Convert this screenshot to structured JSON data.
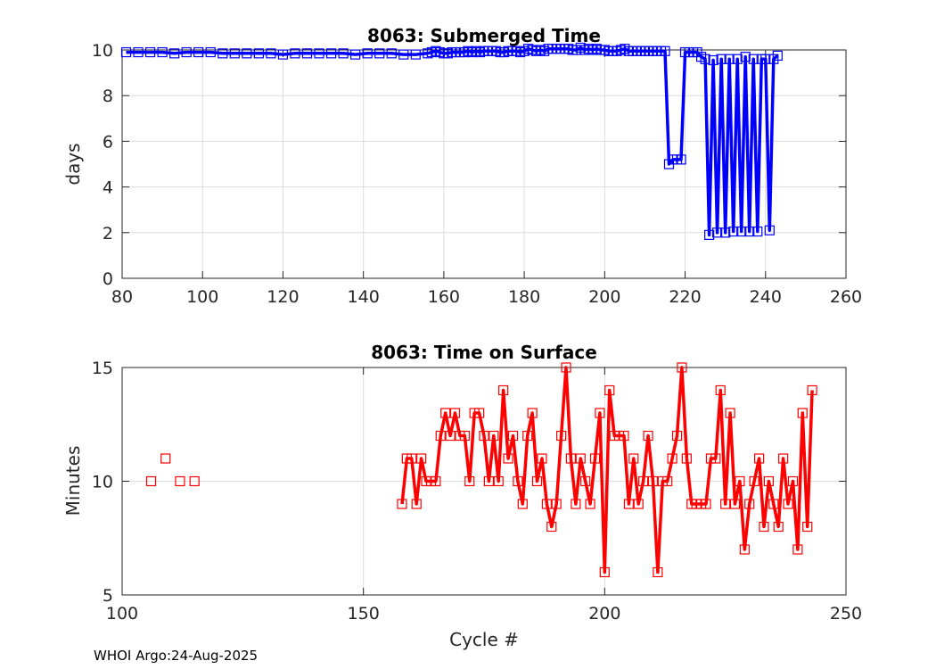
{
  "figure": {
    "footer": "WHOI Argo:24-Aug-2025"
  },
  "chart_data": [
    {
      "type": "line",
      "title": "8063: Submerged Time",
      "xlabel": "",
      "ylabel": "days",
      "xlim": [
        80,
        260
      ],
      "ylim": [
        0,
        10
      ],
      "xticks": [
        80,
        100,
        120,
        140,
        160,
        180,
        200,
        220,
        240,
        260
      ],
      "yticks": [
        0,
        2,
        4,
        6,
        8,
        10
      ],
      "grid": true,
      "color": "#0000ff",
      "marker": "square",
      "series": [
        {
          "x": [
            81,
            84,
            87,
            90,
            93,
            96,
            99,
            102,
            105,
            108,
            111,
            114,
            117,
            120,
            123,
            126,
            129,
            132,
            135,
            138,
            141,
            144,
            147,
            150,
            153,
            156,
            157,
            158,
            159,
            160,
            161,
            162,
            163,
            164,
            165,
            166,
            167,
            168,
            169,
            170,
            171,
            172,
            173,
            174,
            175,
            176,
            177,
            178,
            179,
            180,
            181,
            182,
            183,
            184,
            185,
            186,
            187,
            188,
            189,
            190,
            191,
            192,
            193,
            194,
            195,
            196,
            197,
            198,
            199,
            200,
            201,
            202,
            203,
            204,
            205,
            206,
            207,
            208,
            209,
            210,
            211,
            212,
            213,
            214,
            215,
            216,
            217,
            218,
            219,
            220,
            221,
            222,
            223,
            224,
            225,
            226,
            227,
            228,
            229,
            230,
            231,
            232,
            233,
            234,
            235,
            236,
            237,
            238,
            239,
            240,
            241,
            242,
            243
          ],
          "y": [
            9.9,
            9.9,
            9.9,
            9.9,
            9.85,
            9.9,
            9.9,
            9.9,
            9.85,
            9.85,
            9.85,
            9.85,
            9.85,
            9.8,
            9.85,
            9.85,
            9.85,
            9.85,
            9.85,
            9.8,
            9.85,
            9.85,
            9.85,
            9.8,
            9.8,
            9.85,
            9.9,
            9.95,
            9.9,
            9.85,
            9.85,
            9.9,
            9.9,
            9.9,
            9.9,
            9.95,
            9.9,
            9.95,
            9.9,
            9.95,
            9.95,
            9.95,
            9.95,
            9.9,
            9.9,
            9.95,
            9.95,
            9.95,
            9.9,
            9.95,
            10.05,
            10.0,
            9.95,
            10.0,
            9.95,
            10.05,
            10.05,
            10.05,
            10.05,
            10.05,
            10.05,
            10.0,
            10.0,
            10.1,
            10.0,
            10.05,
            10.0,
            10.05,
            10.0,
            10.0,
            9.95,
            9.95,
            9.95,
            10.0,
            10.05,
            9.95,
            9.95,
            9.95,
            9.95,
            9.95,
            9.95,
            9.95,
            9.95,
            9.95,
            9.95,
            5.0,
            5.2,
            5.2,
            5.2,
            9.9,
            9.9,
            9.9,
            9.9,
            9.7,
            9.6,
            1.9,
            9.55,
            2.0,
            9.6,
            2.0,
            9.6,
            2.05,
            9.6,
            2.05,
            9.7,
            2.05,
            9.6,
            2.05,
            9.6,
            9.6,
            2.1,
            9.6,
            9.75
          ]
        }
      ]
    },
    {
      "type": "line",
      "title": "8063: Time on Surface",
      "xlabel": "Cycle #",
      "ylabel": "Minutes",
      "xlim": [
        100,
        250
      ],
      "ylim": [
        5,
        15
      ],
      "xticks": [
        100,
        150,
        200,
        250
      ],
      "yticks": [
        5,
        10,
        15
      ],
      "grid": true,
      "color": "#ff0000",
      "marker": "square",
      "series": [
        {
          "x": [
            106,
            109,
            112,
            115
          ],
          "y": [
            10,
            11,
            10,
            10
          ],
          "line": false
        },
        {
          "x": [
            158,
            159,
            160,
            161,
            162,
            163,
            164,
            165,
            166,
            167,
            168,
            169,
            170,
            171,
            172,
            173,
            174,
            175,
            176,
            177,
            178,
            179,
            180,
            181,
            182,
            183,
            184,
            185,
            186,
            187,
            188,
            189,
            190,
            191,
            192,
            193,
            194,
            195,
            196,
            197,
            198,
            199,
            200,
            201,
            202,
            203,
            204,
            205,
            206,
            207,
            208,
            209,
            210,
            211,
            212,
            213,
            214,
            215,
            216,
            217,
            218,
            219,
            220,
            221,
            222,
            223,
            224,
            225,
            226,
            227,
            228,
            229,
            230,
            231,
            232,
            233,
            234,
            235,
            236,
            237,
            238,
            239,
            240,
            241,
            242,
            243
          ],
          "y": [
            9,
            11,
            11,
            9,
            11,
            10,
            10,
            10,
            12,
            13,
            12,
            13,
            12,
            12,
            10,
            13,
            13,
            12,
            10,
            12,
            10,
            14,
            11,
            12,
            10,
            9,
            12,
            13,
            10,
            11,
            9,
            8,
            9,
            12,
            15,
            11,
            9,
            11,
            10,
            9,
            11,
            13,
            6,
            14,
            12,
            12,
            12,
            9,
            11,
            9,
            10,
            12,
            10,
            6,
            10,
            10,
            11,
            12,
            15,
            11,
            9,
            9,
            9,
            9,
            11,
            11,
            14,
            9,
            13,
            9,
            10,
            7,
            9,
            10,
            11,
            8,
            10,
            9,
            8,
            11,
            9,
            10,
            7,
            13,
            8,
            14
          ]
        }
      ]
    }
  ]
}
